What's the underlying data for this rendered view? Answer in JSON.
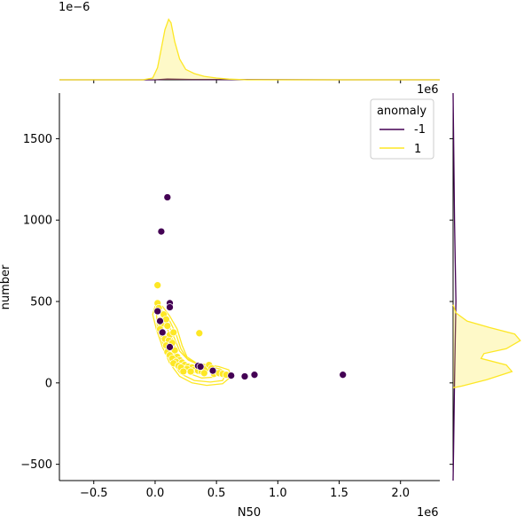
{
  "chart_data": {
    "type": "scatter",
    "xlabel": "N50",
    "ylabel": "number",
    "x_offset_label": "1e6",
    "y_offset_label_right": "1e6",
    "top_marginal_offset_label": "1e−6",
    "xlim": [
      -0.78,
      2.32
    ],
    "ylim": [
      -600,
      1780
    ],
    "x_ticks": [
      -0.5,
      0.0,
      0.5,
      1.0,
      1.5,
      2.0
    ],
    "x_tick_labels": [
      "−0.5",
      "0.0",
      "0.5",
      "1.0",
      "1.5",
      "2.0"
    ],
    "y_ticks": [
      -500,
      0,
      500,
      1000,
      1500
    ],
    "y_tick_labels": [
      "−500",
      "0",
      "500",
      "1000",
      "1500"
    ],
    "legend": {
      "title": "anomaly",
      "position": "top-right",
      "entries": [
        {
          "label": "-1",
          "color": "#440154"
        },
        {
          "label": "1",
          "color": "#fde725"
        }
      ]
    },
    "series": [
      {
        "name": "-1",
        "color": "#440154",
        "points": [
          [
            0.1,
            1140
          ],
          [
            0.05,
            930
          ],
          [
            0.12,
            490
          ],
          [
            0.12,
            465
          ],
          [
            0.02,
            440
          ],
          [
            0.04,
            380
          ],
          [
            0.12,
            220
          ],
          [
            0.35,
            105
          ],
          [
            0.37,
            100
          ],
          [
            0.62,
            45
          ],
          [
            0.73,
            40
          ],
          [
            0.81,
            50
          ],
          [
            1.53,
            50
          ],
          [
            0.47,
            75
          ],
          [
            0.06,
            310
          ]
        ]
      },
      {
        "name": "1",
        "color": "#fde725",
        "points": [
          [
            0.02,
            600
          ],
          [
            0.02,
            490
          ],
          [
            0.03,
            460
          ],
          [
            0.07,
            420
          ],
          [
            0.09,
            390
          ],
          [
            0.05,
            360
          ],
          [
            0.1,
            350
          ],
          [
            0.04,
            330
          ],
          [
            0.06,
            300
          ],
          [
            0.12,
            295
          ],
          [
            0.15,
            310
          ],
          [
            0.36,
            305
          ],
          [
            0.08,
            270
          ],
          [
            0.11,
            260
          ],
          [
            0.14,
            245
          ],
          [
            0.09,
            230
          ],
          [
            0.13,
            210
          ],
          [
            0.16,
            200
          ],
          [
            0.1,
            190
          ],
          [
            0.12,
            170
          ],
          [
            0.18,
            160
          ],
          [
            0.14,
            150
          ],
          [
            0.2,
            140
          ],
          [
            0.17,
            130
          ],
          [
            0.22,
            125
          ],
          [
            0.15,
            120
          ],
          [
            0.24,
            110
          ],
          [
            0.19,
            105
          ],
          [
            0.27,
            100
          ],
          [
            0.3,
            95
          ],
          [
            0.26,
            85
          ],
          [
            0.32,
            80
          ],
          [
            0.29,
            70
          ],
          [
            0.35,
            75
          ],
          [
            0.38,
            70
          ],
          [
            0.41,
            85
          ],
          [
            0.44,
            110
          ],
          [
            0.46,
            90
          ],
          [
            0.4,
            60
          ],
          [
            0.48,
            55
          ],
          [
            0.52,
            60
          ],
          [
            0.55,
            55
          ],
          [
            0.58,
            50
          ],
          [
            0.21,
            95
          ],
          [
            0.23,
            70
          ]
        ]
      }
    ],
    "contours_series_1": [
      [
        [
          0.0,
          470
        ],
        [
          0.06,
          470
        ],
        [
          0.12,
          410
        ],
        [
          0.18,
          330
        ],
        [
          0.22,
          230
        ],
        [
          0.26,
          160
        ],
        [
          0.34,
          120
        ],
        [
          0.44,
          110
        ],
        [
          0.52,
          100
        ],
        [
          0.6,
          80
        ],
        [
          0.62,
          40
        ],
        [
          0.55,
          -5
        ],
        [
          0.42,
          -15
        ],
        [
          0.3,
          0
        ],
        [
          0.2,
          40
        ],
        [
          0.12,
          120
        ],
        [
          0.06,
          220
        ],
        [
          0.01,
          330
        ],
        [
          -0.02,
          420
        ],
        [
          0.0,
          470
        ]
      ],
      [
        [
          0.01,
          440
        ],
        [
          0.07,
          440
        ],
        [
          0.12,
          380
        ],
        [
          0.17,
          300
        ],
        [
          0.21,
          210
        ],
        [
          0.26,
          150
        ],
        [
          0.35,
          115
        ],
        [
          0.45,
          100
        ],
        [
          0.53,
          85
        ],
        [
          0.58,
          60
        ],
        [
          0.55,
          15
        ],
        [
          0.45,
          5
        ],
        [
          0.32,
          15
        ],
        [
          0.21,
          55
        ],
        [
          0.13,
          135
        ],
        [
          0.07,
          230
        ],
        [
          0.02,
          330
        ],
        [
          0.01,
          440
        ]
      ],
      [
        [
          0.03,
          400
        ],
        [
          0.08,
          400
        ],
        [
          0.12,
          340
        ],
        [
          0.16,
          270
        ],
        [
          0.2,
          195
        ],
        [
          0.27,
          140
        ],
        [
          0.36,
          110
        ],
        [
          0.46,
          90
        ],
        [
          0.52,
          70
        ],
        [
          0.48,
          35
        ],
        [
          0.38,
          30
        ],
        [
          0.27,
          60
        ],
        [
          0.18,
          120
        ],
        [
          0.11,
          200
        ],
        [
          0.05,
          290
        ],
        [
          0.03,
          400
        ]
      ],
      [
        [
          0.06,
          350
        ],
        [
          0.1,
          330
        ],
        [
          0.14,
          270
        ],
        [
          0.17,
          205
        ],
        [
          0.2,
          150
        ],
        [
          0.17,
          120
        ],
        [
          0.12,
          150
        ],
        [
          0.08,
          220
        ],
        [
          0.05,
          290
        ],
        [
          0.06,
          350
        ]
      ],
      [
        [
          0.08,
          300
        ],
        [
          0.12,
          280
        ],
        [
          0.15,
          230
        ],
        [
          0.16,
          180
        ],
        [
          0.13,
          160
        ],
        [
          0.1,
          200
        ],
        [
          0.08,
          250
        ],
        [
          0.08,
          300
        ]
      ]
    ],
    "x_marginal": {
      "ylim": [
        0,
        2.0
      ],
      "curves": [
        {
          "name": "-1",
          "color": "#440154",
          "fill": false,
          "points": [
            [
              -0.78,
              0
            ],
            [
              0.0,
              0.0
            ],
            [
              0.1,
              0.02
            ],
            [
              0.3,
              0.01
            ],
            [
              0.8,
              0.005
            ],
            [
              1.5,
              0.0
            ],
            [
              2.32,
              0
            ]
          ]
        },
        {
          "name": "1",
          "color": "#fde725",
          "fill": true,
          "points": [
            [
              -0.78,
              0
            ],
            [
              -0.1,
              0.0
            ],
            [
              -0.02,
              0.05
            ],
            [
              0.02,
              0.35
            ],
            [
              0.05,
              0.9
            ],
            [
              0.08,
              1.45
            ],
            [
              0.11,
              1.75
            ],
            [
              0.13,
              1.65
            ],
            [
              0.16,
              1.1
            ],
            [
              0.2,
              0.6
            ],
            [
              0.25,
              0.3
            ],
            [
              0.32,
              0.18
            ],
            [
              0.4,
              0.1
            ],
            [
              0.5,
              0.05
            ],
            [
              0.6,
              0.02
            ],
            [
              0.75,
              0.0
            ],
            [
              2.32,
              0
            ]
          ]
        }
      ]
    },
    "y_marginal": {
      "xlim": [
        0,
        0.0025
      ],
      "curves": [
        {
          "name": "-1",
          "color": "#440154",
          "fill": false,
          "points": [
            [
              0,
              -600
            ],
            [
              2e-05,
              -400
            ],
            [
              5e-05,
              0
            ],
            [
              0.0001,
              500
            ],
            [
              5e-05,
              1000
            ],
            [
              2e-05,
              1500
            ],
            [
              0,
              1780
            ]
          ]
        },
        {
          "name": "1",
          "color": "#fde725",
          "fill": true,
          "points": [
            [
              0,
              -30
            ],
            [
              0.0003,
              -20
            ],
            [
              0.0012,
              20
            ],
            [
              0.0021,
              70
            ],
            [
              0.0019,
              110
            ],
            [
              0.001,
              150
            ],
            [
              0.0011,
              180
            ],
            [
              0.0019,
              210
            ],
            [
              0.0024,
              260
            ],
            [
              0.0022,
              300
            ],
            [
              0.0013,
              340
            ],
            [
              0.0005,
              380
            ],
            [
              0.0001,
              430
            ],
            [
              0,
              480
            ]
          ]
        }
      ]
    }
  }
}
